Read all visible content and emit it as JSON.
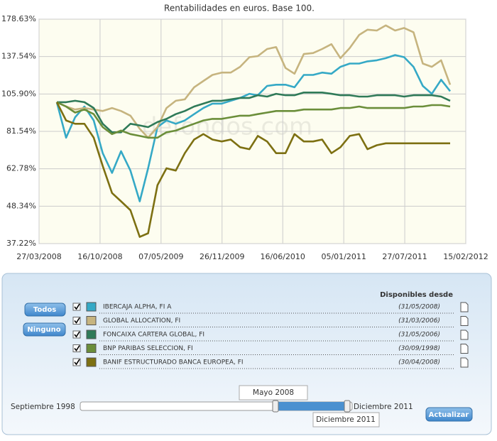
{
  "chart_data": {
    "type": "line",
    "title": "Rentabilidades en euros. Base 100.",
    "log_scale": true,
    "grid": true,
    "x": [
      "25/05/2008",
      "25/06/2008",
      "25/07/2008",
      "25/08/2008",
      "25/09/2008",
      "25/10/2008",
      "25/11/2008",
      "25/12/2008",
      "25/01/2009",
      "25/02/2009",
      "25/03/2009",
      "25/04/2009",
      "25/05/2009",
      "25/06/2009",
      "25/07/2009",
      "25/08/2009",
      "25/09/2009",
      "25/10/2009",
      "25/11/2009",
      "25/12/2009",
      "25/01/2010",
      "25/02/2010",
      "25/03/2010",
      "25/04/2010",
      "25/05/2010",
      "25/06/2010",
      "25/07/2010",
      "25/08/2010",
      "25/09/2010",
      "25/10/2010",
      "25/11/2010",
      "25/12/2010",
      "25/01/2011",
      "25/02/2011",
      "25/03/2011",
      "25/04/2011",
      "25/05/2011",
      "25/06/2011",
      "25/07/2011",
      "25/08/2011",
      "25/09/2011",
      "25/10/2011",
      "25/11/2011",
      "25/12/2011"
    ],
    "xlim": [
      "27/03/2008",
      "15/02/2012"
    ],
    "xticks": [
      "27/03/2008",
      "16/10/2008",
      "07/05/2009",
      "26/11/2009",
      "16/06/2010",
      "05/01/2011",
      "27/07/2011",
      "15/02/2012"
    ],
    "ylim": [
      37.22,
      178.63
    ],
    "yticks": [
      {
        "value": 37.22,
        "label": "37.22%"
      },
      {
        "value": 48.34,
        "label": "48.34%"
      },
      {
        "value": 62.78,
        "label": "62.78%"
      },
      {
        "value": 81.54,
        "label": "81.54%"
      },
      {
        "value": 105.9,
        "label": "105.90%"
      },
      {
        "value": 137.54,
        "label": "137.54%"
      },
      {
        "value": 178.63,
        "label": "178.63%"
      }
    ],
    "series": [
      {
        "name": "IBERCAJA ALPHA, FI A",
        "color": "#35a9c6",
        "values": [
          100,
          78,
          90,
          97,
          88,
          70,
          61,
          71,
          62,
          50,
          63,
          84,
          88,
          86,
          88,
          92,
          96,
          99,
          99,
          101,
          103,
          106,
          105,
          112,
          113,
          113,
          111,
          121,
          121,
          123,
          122,
          128,
          131,
          131,
          133,
          134,
          136,
          139,
          137,
          128,
          112,
          106,
          117,
          108
        ]
      },
      {
        "name": "GLOBAL ALLOCATION, FI",
        "color": "#c6b47f",
        "values": [
          100,
          97,
          95,
          96,
          95,
          94,
          96,
          94,
          91,
          83,
          78,
          84,
          96,
          101,
          102,
          111,
          116,
          121,
          123,
          123,
          128,
          137,
          138,
          145,
          147,
          127,
          122,
          140,
          141,
          145,
          150,
          136,
          146,
          160,
          166,
          165,
          171,
          165,
          168,
          163,
          131,
          128,
          134,
          113
        ]
      },
      {
        "name": "FONCAIXA CARTERA GLOBAL, FI",
        "color": "#2f7a58",
        "values": [
          100,
          100,
          101,
          100,
          96,
          86,
          81,
          81,
          86,
          85,
          84,
          87,
          89,
          92,
          94,
          97,
          99,
          101,
          101,
          102,
          103,
          103,
          105,
          104,
          106,
          105,
          105,
          107,
          107,
          107,
          106,
          105,
          105,
          104,
          104,
          105,
          105,
          105,
          104,
          105,
          105,
          105,
          104,
          101
        ]
      },
      {
        "name": "BNP PARIBAS SELECCION, FI",
        "color": "#6b8e3a",
        "values": [
          100,
          97,
          93,
          95,
          92,
          84,
          80,
          82,
          80,
          79,
          78,
          78,
          81,
          82,
          84,
          86,
          88,
          89,
          89,
          90,
          91,
          91,
          92,
          93,
          94,
          94,
          94,
          95,
          95,
          95,
          95,
          96,
          96,
          97,
          96,
          96,
          96,
          96,
          96,
          97,
          97,
          98,
          98,
          97
        ]
      },
      {
        "name": "BANIF ESTRUCTURADO BANCA EUROPEA, FI",
        "color": "#7d7012",
        "values": [
          100,
          88,
          86,
          86,
          78,
          64,
          53,
          50,
          47,
          39,
          40,
          56,
          63,
          62,
          70,
          77,
          80,
          77,
          76,
          77,
          73,
          72,
          79,
          76,
          70,
          70,
          80,
          76,
          76,
          77,
          70,
          73,
          79,
          80,
          72,
          74,
          75,
          75,
          75,
          75,
          75,
          75,
          75,
          75
        ]
      }
    ]
  },
  "watermark": "defondos.com",
  "panel": {
    "buttons": [
      "Todos",
      "Ninguno"
    ],
    "header": "Disponibles desde",
    "since": [
      "(31/05/2008)",
      "(31/03/2006)",
      "(31/05/2006)",
      "(30/09/1998)",
      "(30/04/2008)"
    ],
    "slider": {
      "min_label": "Septiembre 1998",
      "max_label": "Diciembre 2011",
      "from": "Mayo 2008",
      "to": "Diciembre 2011"
    },
    "submit": "Actualizar"
  }
}
